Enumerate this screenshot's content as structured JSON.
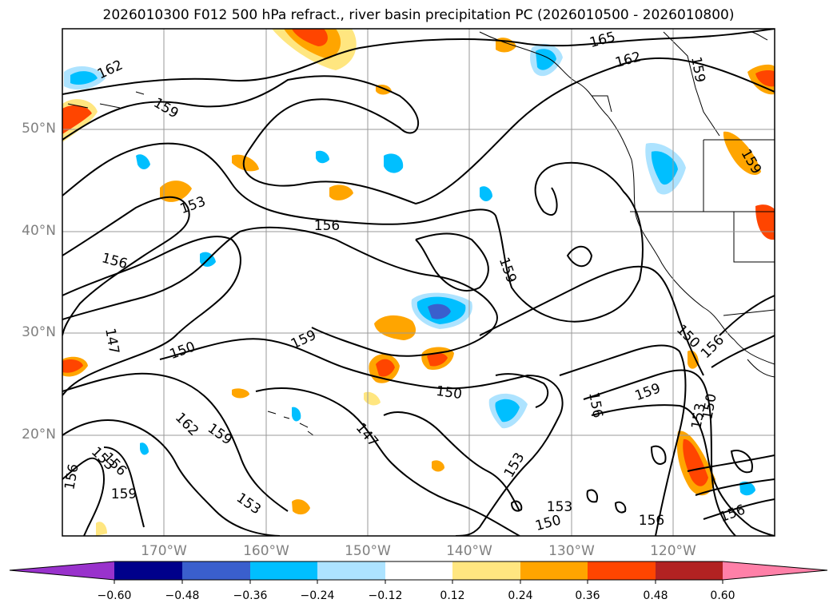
{
  "title": "2026010300 F012 500 hPa refract., river basin precipitation PC (2026010500 - 2026010800)",
  "map": {
    "lat_labels": [
      "50°N",
      "40°N",
      "30°N",
      "20°N"
    ],
    "lon_labels": [
      "170°W",
      "160°W",
      "150°W",
      "140°W",
      "130°W",
      "120°W"
    ],
    "contour_labels": [
      "165",
      "162",
      "159",
      "162",
      "159",
      "159",
      "153",
      "156",
      "156",
      "159",
      "147",
      "150",
      "159",
      "150",
      "147",
      "162",
      "159",
      "156",
      "153",
      "159",
      "153",
      "150",
      "153",
      "156",
      "153",
      "156",
      "159",
      "156",
      "156",
      "150",
      "153",
      "156",
      "150"
    ]
  },
  "colorbar": {
    "ticks": [
      "−0.60",
      "−0.48",
      "−0.36",
      "−0.24",
      "−0.12",
      "0.12",
      "0.24",
      "0.36",
      "0.48",
      "0.60"
    ],
    "colors": [
      "#9932CC",
      "#00008B",
      "#3A5FCD",
      "#00BFFF",
      "#ADE3FF",
      "#FFFFFF",
      "#FFE680",
      "#FFA500",
      "#FF4500",
      "#B22222",
      "#FF80A8"
    ]
  }
}
